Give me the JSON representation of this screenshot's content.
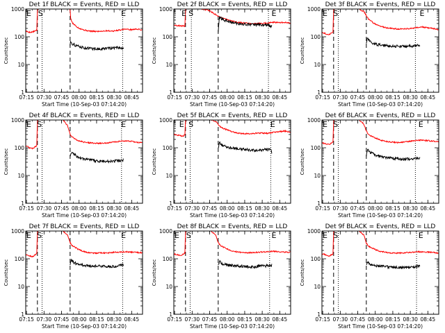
{
  "figure": {
    "xlabel": "Start Time (10-Sep-03 07:14:20)",
    "ylabel": "Counts/sec",
    "x_tick_labels": [
      "07:15",
      "07:30",
      "07:45",
      "08:00",
      "08:15",
      "08:30",
      "08:45"
    ],
    "y_tick_labels": [
      "1",
      "10",
      "100",
      "1000"
    ]
  },
  "chart_data": [
    {
      "type": "line",
      "title": "Det 1f BLACK = Events, RED = LLD",
      "xlabel": "Start Time (10-Sep-03 07:14:20)",
      "ylabel": "Counts/sec",
      "y_scale": "log",
      "ylim": [
        1,
        1000
      ],
      "xlim_minutes": [
        0,
        100
      ],
      "annotations": [
        {
          "text": "E",
          "x_min": 0
        },
        {
          "text": "S",
          "x_min": 10
        },
        {
          "text": "E",
          "x_min": 81
        }
      ],
      "vlines": [
        {
          "x_min": 10,
          "style": "dashed"
        },
        {
          "x_min": 14,
          "style": "dotted"
        },
        {
          "x_min": 38,
          "style": "dashed"
        },
        {
          "x_min": 83,
          "style": "dotted"
        }
      ],
      "series": [
        {
          "name": "LLD",
          "color": "#ff0000",
          "x": [
            0,
            2,
            4,
            6,
            9.5,
            10,
            12,
            14,
            16,
            38,
            38.5,
            40,
            45,
            50,
            55,
            60,
            65,
            70,
            75,
            80,
            85,
            90,
            95,
            100
          ],
          "y": [
            160,
            150,
            145,
            150,
            170,
            1000,
            1000,
            1000,
            1000,
            1000,
            460,
            310,
            210,
            175,
            160,
            155,
            160,
            165,
            160,
            175,
            190,
            180,
            190,
            175
          ]
        },
        {
          "name": "Events",
          "color": "#000000",
          "x": [
            38,
            38.5,
            40,
            45,
            50,
            55,
            60,
            65,
            70,
            75,
            80,
            84
          ],
          "y": [
            50,
            70,
            55,
            45,
            40,
            38,
            37,
            36,
            38,
            40,
            41,
            38
          ]
        }
      ]
    },
    {
      "type": "line",
      "title": "Det 2f BLACK = Events, RED = LLD",
      "xlabel": "Start Time (10-Sep-03 07:14:20)",
      "ylabel": "Counts/sec",
      "y_scale": "log",
      "ylim": [
        1,
        1000
      ],
      "xlim_minutes": [
        0,
        100
      ],
      "annotations": [
        {
          "text": "E",
          "x_min": 6
        },
        {
          "text": "S",
          "x_min": 12
        },
        {
          "text": "E",
          "x_min": 83
        }
      ],
      "vlines": [
        {
          "x_min": 10,
          "style": "dashed"
        },
        {
          "x_min": 15,
          "style": "dotted"
        },
        {
          "x_min": 38,
          "style": "dashed"
        },
        {
          "x_min": 81,
          "style": "dotted"
        }
      ],
      "series": [
        {
          "name": "LLD",
          "color": "#ff0000",
          "x": [
            0,
            5,
            9.5,
            10,
            24,
            30,
            34,
            38,
            42,
            48,
            55,
            62,
            70,
            78,
            85,
            92,
            100
          ],
          "y": [
            260,
            250,
            240,
            1000,
            1000,
            900,
            700,
            560,
            470,
            380,
            330,
            310,
            300,
            310,
            330,
            330,
            310
          ]
        },
        {
          "name": "Events",
          "color": "#000000",
          "x": [
            38,
            39,
            42,
            48,
            55,
            62,
            70,
            78,
            84
          ],
          "y": [
            150,
            500,
            420,
            340,
            300,
            280,
            270,
            270,
            240
          ]
        }
      ]
    },
    {
      "type": "line",
      "title": "Det 3f BLACK = Events, RED = LLD",
      "xlabel": "Start Time (10-Sep-03 07:14:20)",
      "ylabel": "Counts/sec",
      "y_scale": "log",
      "ylim": [
        1,
        1000
      ],
      "xlim_minutes": [
        0,
        100
      ],
      "annotations": [
        {
          "text": "E",
          "x_min": 0
        },
        {
          "text": "S",
          "x_min": 9
        },
        {
          "text": "E",
          "x_min": 83
        }
      ],
      "vlines": [
        {
          "x_min": 10,
          "style": "dashed"
        },
        {
          "x_min": 14,
          "style": "dotted"
        },
        {
          "x_min": 38,
          "style": "dashed"
        },
        {
          "x_min": 80,
          "style": "dotted"
        }
      ],
      "series": [
        {
          "name": "LLD",
          "color": "#ff0000",
          "x": [
            0,
            3,
            6,
            9.5,
            10,
            14,
            32,
            36,
            40,
            45,
            50,
            55,
            60,
            65,
            70,
            75,
            80,
            85,
            90,
            95,
            100
          ],
          "y": [
            150,
            130,
            120,
            150,
            1000,
            1000,
            1000,
            800,
            420,
            300,
            240,
            210,
            200,
            190,
            190,
            200,
            210,
            230,
            210,
            200,
            180
          ]
        },
        {
          "name": "Events",
          "color": "#000000",
          "x": [
            38,
            39,
            42,
            48,
            55,
            62,
            70,
            78,
            84
          ],
          "y": [
            60,
            90,
            60,
            52,
            48,
            46,
            45,
            46,
            50
          ]
        }
      ]
    },
    {
      "type": "line",
      "title": "Det 4f BLACK = Events, RED = LLD",
      "xlabel": "Start Time (10-Sep-03 07:14:20)",
      "ylabel": "Counts/sec",
      "y_scale": "log",
      "ylim": [
        1,
        1000
      ],
      "xlim_minutes": [
        0,
        100
      ],
      "annotations": [
        {
          "text": "E",
          "x_min": 0
        },
        {
          "text": "S",
          "x_min": 9
        },
        {
          "text": "E",
          "x_min": 81
        }
      ],
      "vlines": [
        {
          "x_min": 10,
          "style": "dashed"
        },
        {
          "x_min": 14,
          "style": "dotted"
        },
        {
          "x_min": 38,
          "style": "dashed"
        },
        {
          "x_min": 82,
          "style": "dotted"
        }
      ],
      "series": [
        {
          "name": "LLD",
          "color": "#ff0000",
          "x": [
            0,
            3,
            6,
            9.5,
            10,
            14,
            32,
            36,
            38,
            40,
            45,
            50,
            55,
            60,
            65,
            70,
            75,
            80,
            85,
            90,
            95,
            100
          ],
          "y": [
            120,
            100,
            95,
            120,
            1000,
            1000,
            1000,
            600,
            300,
            240,
            180,
            160,
            150,
            145,
            145,
            150,
            160,
            170,
            180,
            170,
            160,
            150
          ]
        },
        {
          "name": "Events",
          "color": "#000000",
          "x": [
            38,
            39,
            42,
            48,
            55,
            62,
            70,
            78,
            84
          ],
          "y": [
            50,
            70,
            55,
            40,
            36,
            33,
            32,
            34,
            36
          ]
        }
      ]
    },
    {
      "type": "line",
      "title": "Det 5f BLACK = Events, RED = LLD",
      "xlabel": "Start Time (10-Sep-03 07:14:20)",
      "ylabel": "Counts/sec",
      "y_scale": "log",
      "ylim": [
        1,
        1000
      ],
      "xlim_minutes": [
        0,
        100
      ],
      "annotations": [
        {
          "text": "E",
          "x_min": 4
        },
        {
          "text": "S",
          "x_min": 12
        },
        {
          "text": "E",
          "x_min": 82
        }
      ],
      "vlines": [
        {
          "x_min": 10,
          "style": "dashed"
        },
        {
          "x_min": 14,
          "style": "dotted"
        },
        {
          "x_min": 38,
          "style": "dashed"
        },
        {
          "x_min": 83,
          "style": "dotted"
        }
      ],
      "series": [
        {
          "name": "LLD",
          "color": "#ff0000",
          "x": [
            0,
            4,
            8,
            9.5,
            10,
            14,
            32,
            36,
            38,
            40,
            45,
            50,
            55,
            60,
            65,
            70,
            75,
            80,
            85,
            90,
            95,
            100
          ],
          "y": [
            300,
            280,
            260,
            300,
            1000,
            1000,
            1000,
            900,
            700,
            560,
            450,
            380,
            340,
            320,
            320,
            330,
            340,
            330,
            360,
            380,
            400,
            370
          ]
        },
        {
          "name": "Events",
          "color": "#000000",
          "x": [
            38,
            39,
            42,
            48,
            55,
            62,
            70,
            78,
            83,
            84
          ],
          "y": [
            100,
            150,
            120,
            100,
            92,
            85,
            80,
            85,
            90,
            60
          ]
        }
      ]
    },
    {
      "type": "line",
      "title": "Det 6f BLACK = Events, RED = LLD",
      "xlabel": "Start Time (10-Sep-03 07:14:20)",
      "ylabel": "Counts/sec",
      "y_scale": "log",
      "ylim": [
        1,
        1000
      ],
      "xlim_minutes": [
        0,
        100
      ],
      "annotations": [
        {
          "text": "E",
          "x_min": 0
        },
        {
          "text": "S",
          "x_min": 9
        },
        {
          "text": "E",
          "x_min": 82
        }
      ],
      "vlines": [
        {
          "x_min": 10,
          "style": "dashed"
        },
        {
          "x_min": 14,
          "style": "dotted"
        },
        {
          "x_min": 38,
          "style": "dashed"
        },
        {
          "x_min": 80,
          "style": "dotted"
        }
      ],
      "series": [
        {
          "name": "LLD",
          "color": "#ff0000",
          "x": [
            0,
            3,
            6,
            9.5,
            10,
            14,
            32,
            36,
            38,
            40,
            45,
            50,
            55,
            60,
            65,
            70,
            75,
            80,
            85,
            90,
            95,
            100
          ],
          "y": [
            150,
            140,
            130,
            160,
            1000,
            1000,
            1000,
            700,
            400,
            300,
            230,
            190,
            170,
            160,
            155,
            160,
            170,
            180,
            190,
            180,
            175,
            165
          ]
        },
        {
          "name": "Events",
          "color": "#000000",
          "x": [
            38,
            39,
            42,
            48,
            55,
            62,
            70,
            78,
            84
          ],
          "y": [
            50,
            90,
            65,
            50,
            44,
            40,
            39,
            40,
            42
          ]
        }
      ]
    },
    {
      "type": "line",
      "title": "Det 7f BLACK = Events, RED = LLD",
      "xlabel": "Start Time (10-Sep-03 07:14:20)",
      "ylabel": "Counts/sec",
      "y_scale": "log",
      "ylim": [
        1,
        1000
      ],
      "xlim_minutes": [
        0,
        100
      ],
      "annotations": [
        {
          "text": "E",
          "x_min": 0
        },
        {
          "text": "S",
          "x_min": 9
        },
        {
          "text": "E",
          "x_min": 81
        }
      ],
      "vlines": [
        {
          "x_min": 10,
          "style": "dashed"
        },
        {
          "x_min": 14,
          "style": "dotted"
        },
        {
          "x_min": 38,
          "style": "dashed"
        },
        {
          "x_min": 83,
          "style": "dotted"
        }
      ],
      "series": [
        {
          "name": "LLD",
          "color": "#ff0000",
          "x": [
            0,
            3,
            6,
            9.5,
            10,
            14,
            32,
            36,
            38,
            40,
            45,
            50,
            55,
            60,
            65,
            70,
            75,
            80,
            85,
            90,
            95,
            100
          ],
          "y": [
            140,
            130,
            120,
            150,
            1000,
            1000,
            1000,
            700,
            380,
            290,
            220,
            180,
            165,
            160,
            165,
            160,
            170,
            175,
            180,
            175,
            170,
            165
          ]
        },
        {
          "name": "Events",
          "color": "#000000",
          "x": [
            38,
            39,
            42,
            48,
            55,
            62,
            70,
            78,
            84
          ],
          "y": [
            60,
            90,
            70,
            60,
            55,
            55,
            52,
            55,
            62
          ]
        }
      ]
    },
    {
      "type": "line",
      "title": "Det 8f BLACK = Events, RED = LLD",
      "xlabel": "Start Time (10-Sep-03 07:14:20)",
      "ylabel": "Counts/sec",
      "y_scale": "log",
      "ylim": [
        1,
        1000
      ],
      "xlim_minutes": [
        0,
        100
      ],
      "annotations": [
        {
          "text": "E",
          "x_min": 0
        },
        {
          "text": "S",
          "x_min": 10
        },
        {
          "text": "E",
          "x_min": 83
        }
      ],
      "vlines": [
        {
          "x_min": 10,
          "style": "dashed"
        },
        {
          "x_min": 14,
          "style": "dotted"
        },
        {
          "x_min": 38,
          "style": "dashed"
        },
        {
          "x_min": 82,
          "style": "dotted"
        }
      ],
      "series": [
        {
          "name": "LLD",
          "color": "#ff0000",
          "x": [
            0,
            3,
            6,
            9.5,
            10,
            14,
            32,
            36,
            38,
            40,
            45,
            50,
            55,
            60,
            65,
            70,
            75,
            80,
            85,
            90,
            95,
            100
          ],
          "y": [
            150,
            140,
            130,
            160,
            1000,
            1000,
            1000,
            700,
            380,
            300,
            230,
            190,
            175,
            165,
            165,
            170,
            175,
            180,
            185,
            180,
            175,
            170
          ]
        },
        {
          "name": "Events",
          "color": "#000000",
          "x": [
            38,
            39,
            42,
            48,
            55,
            62,
            70,
            78,
            84
          ],
          "y": [
            60,
            80,
            65,
            58,
            55,
            52,
            52,
            55,
            60
          ]
        }
      ]
    },
    {
      "type": "line",
      "title": "Det 9f BLACK = Events, RED = LLD",
      "xlabel": "Start Time (10-Sep-03 07:14:20)",
      "ylabel": "Counts/sec",
      "y_scale": "log",
      "ylim": [
        1,
        1000
      ],
      "xlim_minutes": [
        0,
        100
      ],
      "annotations": [
        {
          "text": "E",
          "x_min": 0
        },
        {
          "text": "S",
          "x_min": 9
        },
        {
          "text": "E",
          "x_min": 82
        }
      ],
      "vlines": [
        {
          "x_min": 10,
          "style": "dashed"
        },
        {
          "x_min": 14,
          "style": "dotted"
        },
        {
          "x_min": 38,
          "style": "dashed"
        },
        {
          "x_min": 81,
          "style": "dotted"
        }
      ],
      "series": [
        {
          "name": "LLD",
          "color": "#ff0000",
          "x": [
            0,
            3,
            6,
            9.5,
            10,
            14,
            32,
            36,
            38,
            40,
            45,
            50,
            55,
            60,
            65,
            70,
            75,
            80,
            85,
            90,
            95,
            100
          ],
          "y": [
            150,
            140,
            125,
            150,
            1000,
            1000,
            1000,
            700,
            360,
            280,
            220,
            185,
            170,
            160,
            160,
            165,
            170,
            175,
            180,
            175,
            170,
            160
          ]
        },
        {
          "name": "Events",
          "color": "#000000",
          "x": [
            38,
            39,
            42,
            48,
            55,
            62,
            70,
            78,
            84
          ],
          "y": [
            60,
            80,
            62,
            55,
            52,
            48,
            48,
            50,
            55
          ]
        }
      ]
    }
  ]
}
